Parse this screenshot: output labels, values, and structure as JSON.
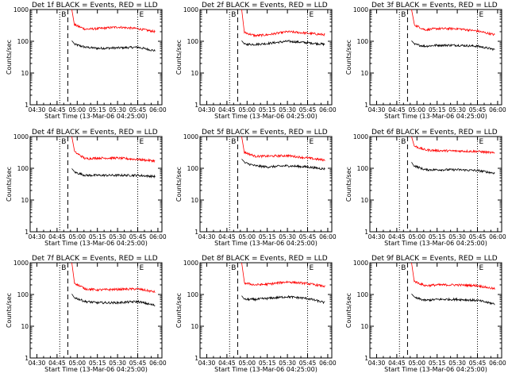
{
  "figure": {
    "x_ticks": [
      "04:30",
      "04:45",
      "05:00",
      "05:15",
      "05:30",
      "05:45",
      "06:00"
    ],
    "y_ticks": [
      "1",
      "10",
      "100",
      "1000"
    ],
    "xlabel": "Start Time (13-Mar-06 04:25:00)",
    "ylabel": "Counts/sec",
    "colors": {
      "events": "#000000",
      "lld": "#ff0000"
    },
    "markers": [
      "dotted",
      "dashed",
      "dotted"
    ]
  },
  "chart_data": [
    {
      "type": "line",
      "title": "Det 1f BLACK = Events, RED = LLD",
      "corner_labels": [
        "B",
        "E"
      ],
      "y_scale": "log",
      "ylim": [
        1,
        1000
      ],
      "x": [
        "04:58",
        "05:06",
        "05:15",
        "05:30",
        "05:45",
        "05:58"
      ],
      "series": [
        {
          "name": "BLACK = Events",
          "color": "#000000",
          "values": [
            80,
            65,
            60,
            62,
            65,
            50
          ]
        },
        {
          "name": "RED = LLD",
          "color": "#ff0000",
          "values": [
            330,
            240,
            250,
            280,
            250,
            200
          ]
        }
      ]
    },
    {
      "type": "line",
      "title": "Det 2f BLACK = Events, RED = LLD",
      "corner_labels": [
        "B",
        "E"
      ],
      "y_scale": "log",
      "ylim": [
        1,
        1000
      ],
      "x": [
        "04:58",
        "05:06",
        "05:15",
        "05:30",
        "05:45",
        "05:58"
      ],
      "series": [
        {
          "name": "BLACK = Events",
          "color": "#000000",
          "values": [
            80,
            80,
            85,
            100,
            90,
            80
          ]
        },
        {
          "name": "RED = LLD",
          "color": "#ff0000",
          "values": [
            190,
            150,
            160,
            200,
            180,
            160
          ]
        }
      ]
    },
    {
      "type": "line",
      "title": "Det 3f BLACK = Events, RED = LLD",
      "corner_labels": [
        "B",
        "E"
      ],
      "y_scale": "log",
      "ylim": [
        1,
        1000
      ],
      "x": [
        "04:58",
        "05:06",
        "05:15",
        "05:30",
        "05:45",
        "05:58"
      ],
      "series": [
        {
          "name": "BLACK = Events",
          "color": "#000000",
          "values": [
            80,
            70,
            75,
            75,
            70,
            55
          ]
        },
        {
          "name": "RED = LLD",
          "color": "#ff0000",
          "values": [
            330,
            230,
            250,
            250,
            210,
            160
          ]
        }
      ]
    },
    {
      "type": "line",
      "title": "Det 4f BLACK = Events, RED = LLD",
      "corner_labels": [
        "B",
        "E"
      ],
      "y_scale": "log",
      "ylim": [
        1,
        1000
      ],
      "x": [
        "04:58",
        "05:06",
        "05:15",
        "05:30",
        "05:45",
        "05:58"
      ],
      "series": [
        {
          "name": "BLACK = Events",
          "color": "#000000",
          "values": [
            75,
            60,
            60,
            60,
            60,
            55
          ]
        },
        {
          "name": "RED = LLD",
          "color": "#ff0000",
          "values": [
            330,
            200,
            210,
            210,
            190,
            170
          ]
        }
      ]
    },
    {
      "type": "line",
      "title": "Det 5f BLACK = Events, RED = LLD",
      "corner_labels": [
        "B",
        "E"
      ],
      "y_scale": "log",
      "ylim": [
        1,
        1000
      ],
      "x": [
        "04:58",
        "05:06",
        "05:15",
        "05:30",
        "05:45",
        "05:58"
      ],
      "series": [
        {
          "name": "BLACK = Events",
          "color": "#000000",
          "values": [
            150,
            120,
            110,
            120,
            110,
            95
          ]
        },
        {
          "name": "RED = LLD",
          "color": "#ff0000",
          "values": [
            320,
            240,
            240,
            250,
            210,
            180
          ]
        }
      ]
    },
    {
      "type": "line",
      "title": "Det 6f BLACK = Events, RED = LLD",
      "corner_labels": [
        "B",
        "E"
      ],
      "y_scale": "log",
      "ylim": [
        1,
        1000
      ],
      "x": [
        "04:58",
        "05:06",
        "05:15",
        "05:30",
        "05:45",
        "05:58"
      ],
      "series": [
        {
          "name": "BLACK = Events",
          "color": "#000000",
          "values": [
            120,
            90,
            90,
            90,
            85,
            70
          ]
        },
        {
          "name": "RED = LLD",
          "color": "#ff0000",
          "values": [
            500,
            380,
            360,
            350,
            340,
            300
          ]
        }
      ]
    },
    {
      "type": "line",
      "title": "Det 7f BLACK = Events, RED = LLD",
      "corner_labels": [
        "B",
        "E"
      ],
      "y_scale": "log",
      "ylim": [
        1,
        1000
      ],
      "x": [
        "04:58",
        "05:06",
        "05:15",
        "05:30",
        "05:45",
        "05:58"
      ],
      "series": [
        {
          "name": "BLACK = Events",
          "color": "#000000",
          "values": [
            80,
            60,
            55,
            55,
            60,
            45
          ]
        },
        {
          "name": "RED = LLD",
          "color": "#ff0000",
          "values": [
            230,
            150,
            140,
            145,
            150,
            120
          ]
        }
      ]
    },
    {
      "type": "line",
      "title": "Det 8f BLACK = Events, RED = LLD",
      "corner_labels": [
        "B",
        "E"
      ],
      "y_scale": "log",
      "ylim": [
        1,
        1000
      ],
      "x": [
        "04:58",
        "05:06",
        "05:15",
        "05:30",
        "05:45",
        "05:58"
      ],
      "series": [
        {
          "name": "BLACK = Events",
          "color": "#000000",
          "values": [
            70,
            70,
            75,
            85,
            75,
            55
          ]
        },
        {
          "name": "RED = LLD",
          "color": "#ff0000",
          "values": [
            230,
            200,
            210,
            250,
            220,
            180
          ]
        }
      ]
    },
    {
      "type": "line",
      "title": "Det 9f BLACK = Events, RED = LLD",
      "corner_labels": [
        "B",
        "E"
      ],
      "y_scale": "log",
      "ylim": [
        1,
        1000
      ],
      "x": [
        "04:58",
        "05:06",
        "05:15",
        "05:30",
        "05:45",
        "05:58"
      ],
      "series": [
        {
          "name": "BLACK = Events",
          "color": "#000000",
          "values": [
            80,
            65,
            70,
            70,
            65,
            50
          ]
        },
        {
          "name": "RED = LLD",
          "color": "#ff0000",
          "values": [
            260,
            190,
            200,
            200,
            190,
            150
          ]
        }
      ]
    }
  ]
}
